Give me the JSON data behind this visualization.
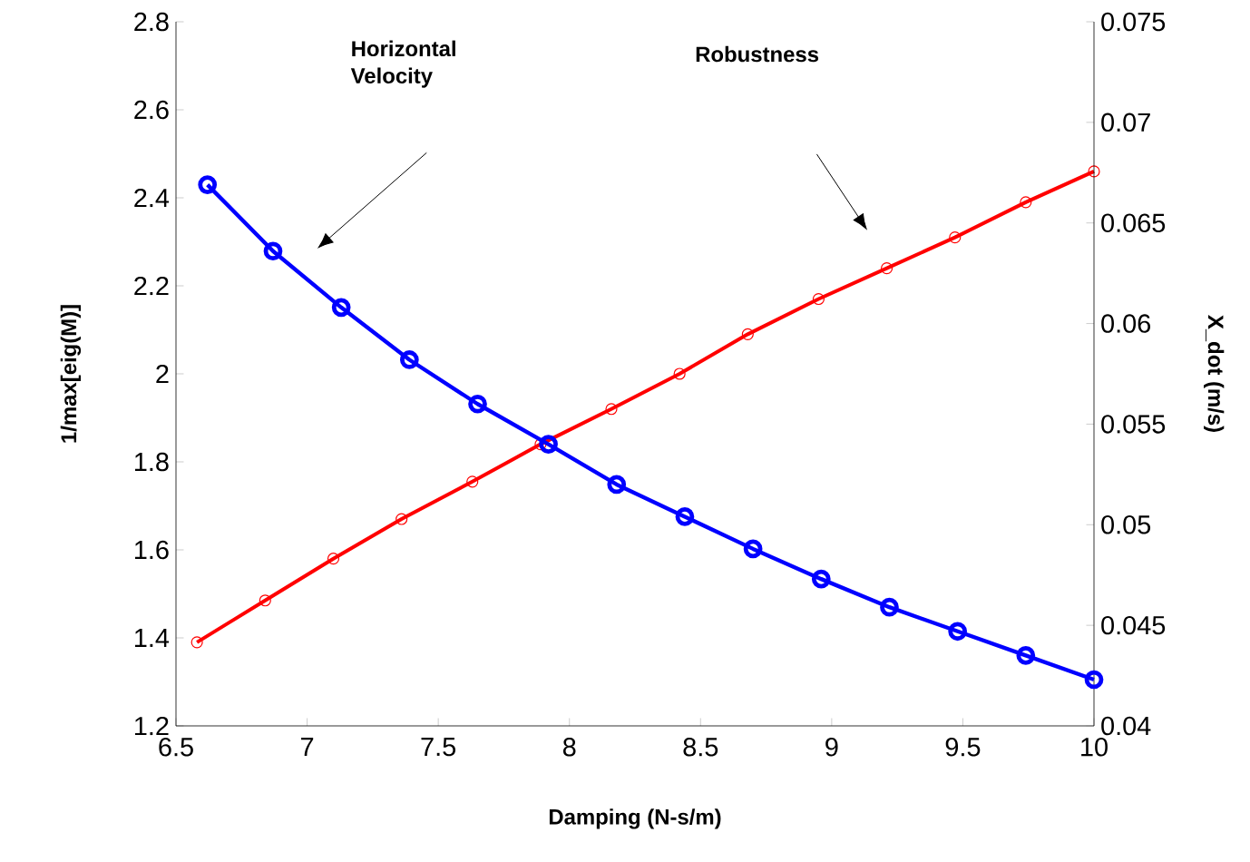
{
  "chart_data": {
    "type": "line",
    "xlabel": "Damping (N-s/m)",
    "ylabel": "1/max[eig(M)]",
    "y2label": "X_dot (m/s)",
    "xlim": [
      6.5,
      10
    ],
    "xticks": [
      6.5,
      7,
      7.5,
      8,
      8.5,
      9,
      9.5,
      10
    ],
    "ylim": [
      1.2,
      2.8
    ],
    "yticks": [
      1.2,
      1.4,
      1.6,
      1.8,
      2,
      2.2,
      2.4,
      2.6,
      2.8
    ],
    "y2lim": [
      0.04,
      0.075
    ],
    "y2ticks": [
      0.04,
      0.045,
      0.05,
      0.055,
      0.06,
      0.065,
      0.07,
      0.075
    ],
    "marker": "circle",
    "line_style": "solid",
    "grid": false,
    "series": [
      {
        "color": "#ff0000",
        "x": [
          6.58,
          6.84,
          7.1,
          7.36,
          7.63,
          7.89,
          8.16,
          8.42,
          8.68,
          8.95,
          9.21,
          9.47,
          9.74,
          10.0
        ],
        "values": [
          1.39,
          1.485,
          1.58,
          1.67,
          1.755,
          1.84,
          1.92,
          2.0,
          2.09,
          2.17,
          2.24,
          2.31,
          2.39,
          2.46
        ]
      },
      {
        "color": "#0000ff",
        "axis": "y2",
        "x": [
          6.62,
          6.87,
          7.13,
          7.39,
          7.65,
          7.92,
          8.18,
          8.44,
          8.7,
          8.96,
          9.22,
          9.48,
          9.74,
          10.0
        ],
        "values": [
          0.0669,
          0.0636,
          0.0608,
          0.0582,
          0.056,
          0.054,
          0.052,
          0.0504,
          0.0488,
          0.0473,
          0.0459,
          0.0447,
          0.0435,
          0.0423
        ]
      }
    ],
    "annotations": [
      "Horizontal Velocity",
      "Robustness"
    ]
  }
}
